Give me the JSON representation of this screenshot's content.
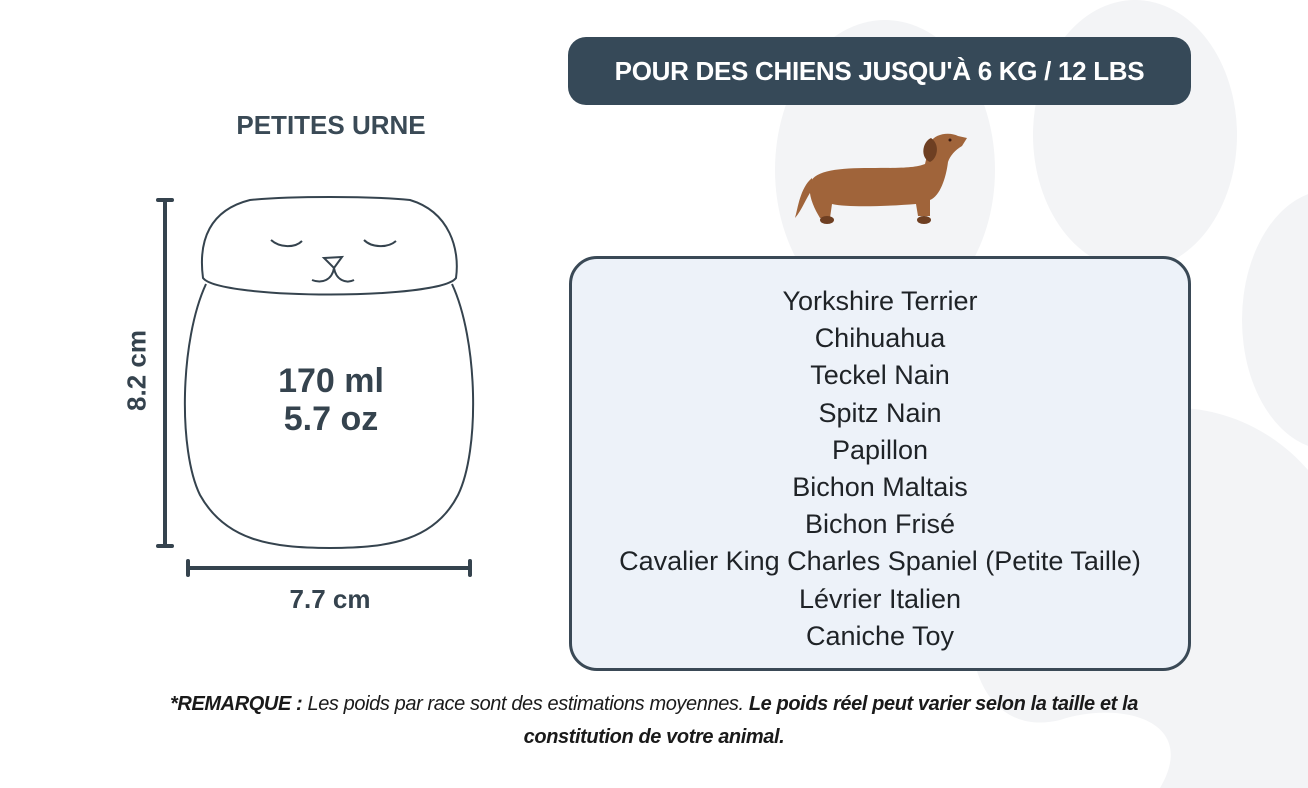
{
  "header": {
    "weight_badge": "POUR DES CHIENS JUSQU'À 6 KG / 12 LBS"
  },
  "urn": {
    "title": "PETITES URNE",
    "volume_ml": "170 ml",
    "volume_oz": "5.7 oz",
    "height": "8.2 cm",
    "width": "7.7 cm"
  },
  "breeds": [
    "Yorkshire Terrier",
    "Chihuahua",
    "Teckel Nain",
    "Spitz Nain",
    "Papillon",
    "Bichon Maltais",
    "Bichon Frisé",
    "Cavalier King Charles Spaniel (Petite Taille)",
    "Lévrier Italien",
    "Caniche Toy"
  ],
  "note": {
    "label": "*REMARQUE :",
    "text": " Les poids par race sont des estimations moyennes. ",
    "emphasis": "Le poids réel peut varier selon la taille et la constitution de votre animal."
  },
  "colors": {
    "badge": "#364958",
    "box_bg": "#edf2f9",
    "box_border": "#3a4956",
    "paw": "#f3f4f6",
    "dog": "#a0643a"
  }
}
